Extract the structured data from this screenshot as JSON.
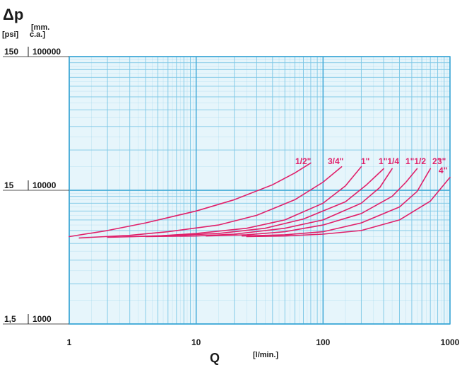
{
  "chart_data": {
    "type": "line",
    "title": "",
    "y_axis": {
      "symbol": "Δp",
      "units": [
        "[psi]",
        "[mm.",
        "c.a.]"
      ],
      "scale": "log",
      "ylim": [
        1000,
        100000
      ],
      "ticks": [
        {
          "value": 100000,
          "psi": "150",
          "mmca": "100000"
        },
        {
          "value": 10000,
          "psi": "15",
          "mmca": "10000"
        },
        {
          "value": 1000,
          "psi": "1,5",
          "mmca": "1000"
        }
      ]
    },
    "x_axis": {
      "symbol": "Q",
      "unit": "[l/min.]",
      "scale": "log",
      "xlim": [
        1,
        1000
      ],
      "ticks": [
        {
          "value": 1,
          "label": "1"
        },
        {
          "value": 10,
          "label": "10"
        },
        {
          "value": 100,
          "label": "100"
        },
        {
          "value": 1000,
          "label": "1000"
        }
      ]
    },
    "grid": true,
    "colors": {
      "series": "#e0206a",
      "grid": "#7cc7e6",
      "grid_major": "#3fa8d6",
      "background": "#e6f5fb",
      "text": "#1a1a1a"
    },
    "series": [
      {
        "name": "1/2\"",
        "x": [
          1,
          2,
          4,
          10,
          20,
          40,
          60,
          80
        ],
        "y": [
          4500,
          5000,
          5700,
          7000,
          8500,
          11000,
          13500,
          16000
        ]
      },
      {
        "name": "3/4\"",
        "x": [
          1.2,
          3,
          6,
          15,
          30,
          60,
          100,
          140
        ],
        "y": [
          4400,
          4600,
          4900,
          5500,
          6500,
          8500,
          11500,
          15000
        ]
      },
      {
        "name": "1\"",
        "x": [
          2,
          5,
          10,
          25,
          50,
          100,
          150,
          200
        ],
        "y": [
          4450,
          4550,
          4750,
          5200,
          6000,
          8000,
          10800,
          15000
        ]
      },
      {
        "name": "1\"1/4",
        "x": [
          3,
          7,
          15,
          35,
          70,
          150,
          220,
          300
        ],
        "y": [
          4500,
          4600,
          4750,
          5200,
          6100,
          8200,
          11000,
          14500
        ]
      },
      {
        "name": "1\"1/2",
        "x": [
          4,
          10,
          20,
          50,
          100,
          200,
          280,
          350
        ],
        "y": [
          4500,
          4550,
          4700,
          5200,
          6000,
          8000,
          10500,
          14500
        ]
      },
      {
        "name": "2\"",
        "x": [
          12,
          25,
          50,
          100,
          200,
          350,
          450,
          550
        ],
        "y": [
          4550,
          4650,
          4900,
          5500,
          6700,
          9000,
          11500,
          14500
        ]
      },
      {
        "name": "3\"",
        "x": [
          23,
          50,
          100,
          200,
          400,
          550,
          700
        ],
        "y": [
          4550,
          4650,
          4900,
          5700,
          7500,
          9800,
          14500
        ]
      },
      {
        "name": "4\"",
        "x": [
          25,
          50,
          100,
          200,
          400,
          700,
          1000
        ],
        "y": [
          4500,
          4550,
          4700,
          5000,
          6000,
          8300,
          12500
        ]
      }
    ],
    "series_label_text": [
      "1/2\"",
      "3/4\"",
      "1\"",
      "1\"1/4",
      "1\"1/2",
      "2\"",
      "3\"",
      "4\""
    ]
  }
}
